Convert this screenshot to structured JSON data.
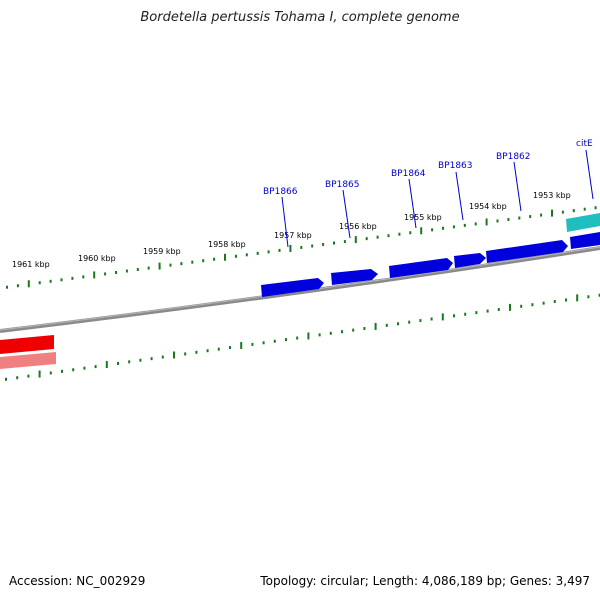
{
  "title": "Bordetella pertussis Tohama I, complete genome",
  "footer": {
    "accession": "Accession: NC_002929",
    "stats": "Topology: circular; Length: 4,086,189 bp; Genes: 3,497"
  },
  "colors": {
    "backbone": "#7a7a7a",
    "tick": "#1a7a1a",
    "gene_forward": "#0000dd",
    "gene_cite": "#1fbfbf",
    "gene_red": "#ee0000",
    "gene_pink": "#f08080",
    "label": "#0000cc"
  },
  "upper_scale": [
    {
      "label": "1961 kbp"
    },
    {
      "label": "1960 kbp"
    },
    {
      "label": "1959 kbp"
    },
    {
      "label": "1958 kbp"
    },
    {
      "label": "1957 kbp"
    },
    {
      "label": "1956 kbp"
    },
    {
      "label": "1955 kbp"
    },
    {
      "label": "1954 kbp"
    },
    {
      "label": "1953 kbp"
    }
  ],
  "gene_labels": [
    {
      "name": "BP1866"
    },
    {
      "name": "BP1865"
    },
    {
      "name": "BP1864"
    },
    {
      "name": "BP1863"
    },
    {
      "name": "BP1862"
    },
    {
      "name": "citE"
    }
  ]
}
